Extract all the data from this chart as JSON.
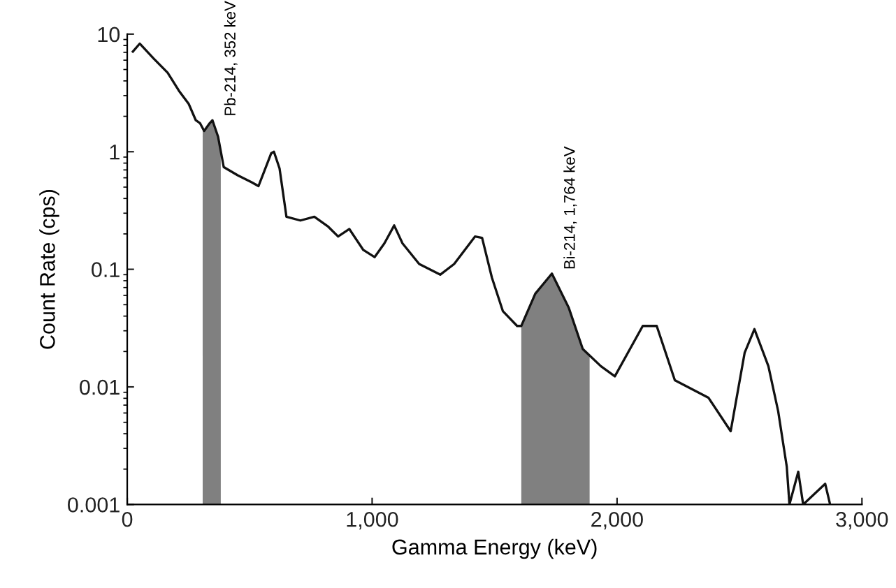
{
  "chart_data": {
    "type": "line",
    "xlabel": "Gamma Energy (keV)",
    "ylabel": "Count Rate (cps)",
    "log": "y",
    "grid": false,
    "legend": false,
    "xlim": [
      0,
      3000
    ],
    "xticks": [
      {
        "value": 0,
        "label": "0"
      },
      {
        "value": 1000,
        "label": "1,000"
      },
      {
        "value": 2000,
        "label": "2,000"
      },
      {
        "value": 3000,
        "label": "3,000"
      }
    ],
    "ylim": [
      0.001,
      10
    ],
    "yticks": [
      {
        "value": 0.001,
        "label": "0.001"
      },
      {
        "value": 0.01,
        "label": "0.01"
      },
      {
        "value": 0.1,
        "label": "0.1"
      },
      {
        "value": 1,
        "label": "1"
      },
      {
        "value": 10,
        "label": "10"
      }
    ],
    "series": [
      {
        "type": "area",
        "color": "#808080",
        "x": [
          308,
          314,
          337,
          348,
          371,
          382
        ],
        "values": [
          1.6,
          1.5,
          1.75,
          1.85,
          1.34,
          1.0
        ]
      },
      {
        "type": "area",
        "color": "#808080",
        "x": [
          1609,
          1666,
          1734,
          1803,
          1860,
          1888
        ],
        "values": [
          0.033,
          0.062,
          0.092,
          0.047,
          0.021,
          0.018
        ]
      },
      {
        "color": "#111111",
        "x": [
          23,
          51,
          108,
          165,
          211,
          251,
          280,
          297,
          314,
          337,
          348,
          371,
          394,
          451,
          508,
          536,
          553,
          588,
          599,
          622,
          650,
          707,
          764,
          821,
          861,
          907,
          964,
          1010,
          1050,
          1090,
          1124,
          1192,
          1278,
          1335,
          1420,
          1449,
          1489,
          1534,
          1592,
          1609,
          1666,
          1734,
          1803,
          1860,
          1934,
          1991,
          2105,
          2162,
          2236,
          2373,
          2464,
          2521,
          2561,
          2618,
          2658,
          2693,
          2704,
          2740,
          2760,
          2850,
          2870
        ],
        "values": [
          7.1,
          8.3,
          6.2,
          4.7,
          3.3,
          2.55,
          1.85,
          1.75,
          1.5,
          1.75,
          1.85,
          1.34,
          0.74,
          0.63,
          0.55,
          0.51,
          0.63,
          0.97,
          1.0,
          0.72,
          0.28,
          0.26,
          0.28,
          0.23,
          0.19,
          0.22,
          0.146,
          0.127,
          0.166,
          0.236,
          0.166,
          0.111,
          0.09,
          0.111,
          0.19,
          0.185,
          0.085,
          0.044,
          0.033,
          0.033,
          0.062,
          0.092,
          0.047,
          0.021,
          0.015,
          0.0123,
          0.033,
          0.033,
          0.0114,
          0.0081,
          0.0042,
          0.0195,
          0.031,
          0.015,
          0.0062,
          0.0021,
          0.001,
          0.0019,
          0.001,
          0.0015,
          0.001
        ]
      }
    ],
    "annotations": [
      {
        "text": "Pb-214, 352 keV",
        "x": 348,
        "y": 1.85
      },
      {
        "text": "Bi-214, 1,764 keV",
        "x": 1734,
        "y": 0.092
      }
    ]
  }
}
